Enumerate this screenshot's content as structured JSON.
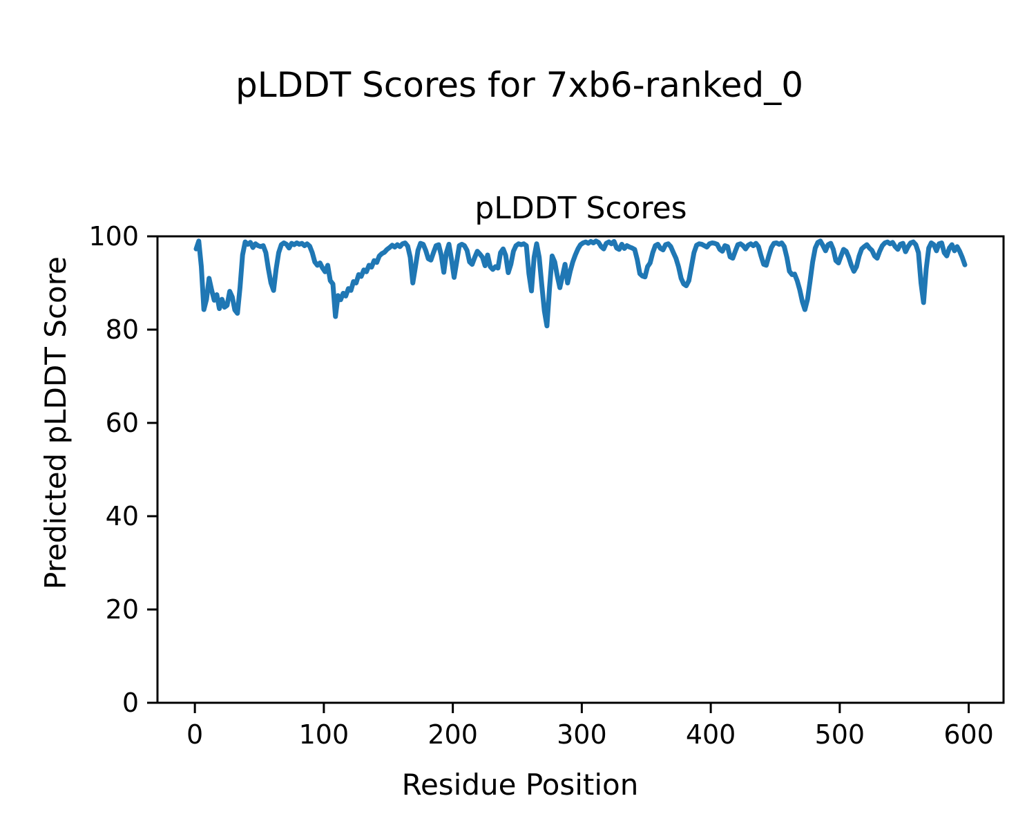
{
  "figure": {
    "background": "#ffffff"
  },
  "chart_data": {
    "type": "line",
    "suptitle": "pLDDT Scores for 7xb6-ranked_0",
    "title": "pLDDT Scores",
    "xlabel": "Residue Position",
    "ylabel": "Predicted pLDDT Score",
    "xlim": [
      -29,
      627
    ],
    "ylim": [
      0,
      100
    ],
    "xticks": [
      0,
      100,
      200,
      300,
      400,
      500,
      600
    ],
    "yticks": [
      0,
      20,
      40,
      60,
      80,
      100
    ],
    "grid": false,
    "legend": null,
    "series": [
      {
        "name": "pLDDT",
        "color": "#1f77b4",
        "line_width": 3,
        "points": [
          [
            1,
            97.3
          ],
          [
            3,
            99.0
          ],
          [
            5,
            93.5
          ],
          [
            7,
            84.3
          ],
          [
            9,
            86.5
          ],
          [
            11,
            91.0
          ],
          [
            13,
            88.5
          ],
          [
            15,
            86.3
          ],
          [
            17,
            87.5
          ],
          [
            19,
            84.5
          ],
          [
            21,
            86.5
          ],
          [
            23,
            84.8
          ],
          [
            25,
            85.2
          ],
          [
            27,
            88.2
          ],
          [
            29,
            87.0
          ],
          [
            31,
            84.2
          ],
          [
            33,
            83.5
          ],
          [
            35,
            89.0
          ],
          [
            37,
            96.0
          ],
          [
            39,
            98.8
          ],
          [
            41,
            98.3
          ],
          [
            43,
            98.7
          ],
          [
            45,
            97.6
          ],
          [
            47,
            98.4
          ],
          [
            49,
            98.0
          ],
          [
            51,
            97.8
          ],
          [
            53,
            98.0
          ],
          [
            55,
            96.5
          ],
          [
            57,
            93.0
          ],
          [
            59,
            90.0
          ],
          [
            61,
            88.4
          ],
          [
            63,
            93.0
          ],
          [
            65,
            96.5
          ],
          [
            67,
            98.2
          ],
          [
            69,
            98.6
          ],
          [
            71,
            98.3
          ],
          [
            73,
            97.5
          ],
          [
            75,
            98.5
          ],
          [
            77,
            98.2
          ],
          [
            79,
            98.6
          ],
          [
            81,
            98.3
          ],
          [
            83,
            98.5
          ],
          [
            85,
            98.0
          ],
          [
            87,
            98.4
          ],
          [
            89,
            97.9
          ],
          [
            91,
            96.5
          ],
          [
            93,
            94.5
          ],
          [
            95,
            93.8
          ],
          [
            97,
            94.3
          ],
          [
            99,
            93.2
          ],
          [
            101,
            92.4
          ],
          [
            103,
            93.8
          ],
          [
            105,
            90.5
          ],
          [
            107,
            89.8
          ],
          [
            109,
            82.8
          ],
          [
            111,
            87.3
          ],
          [
            113,
            86.4
          ],
          [
            115,
            87.8
          ],
          [
            117,
            87.2
          ],
          [
            119,
            88.8
          ],
          [
            121,
            88.4
          ],
          [
            123,
            90.3
          ],
          [
            125,
            90.0
          ],
          [
            127,
            91.8
          ],
          [
            129,
            91.4
          ],
          [
            131,
            92.8
          ],
          [
            133,
            92.4
          ],
          [
            135,
            93.8
          ],
          [
            137,
            93.4
          ],
          [
            139,
            94.8
          ],
          [
            141,
            94.4
          ],
          [
            143,
            95.8
          ],
          [
            145,
            96.3
          ],
          [
            147,
            96.6
          ],
          [
            149,
            97.2
          ],
          [
            151,
            97.6
          ],
          [
            153,
            98.1
          ],
          [
            155,
            97.7
          ],
          [
            157,
            98.2
          ],
          [
            159,
            97.8
          ],
          [
            161,
            98.4
          ],
          [
            163,
            98.6
          ],
          [
            165,
            97.9
          ],
          [
            167,
            95.5
          ],
          [
            169,
            90.0
          ],
          [
            171,
            93.5
          ],
          [
            173,
            97.0
          ],
          [
            175,
            98.5
          ],
          [
            177,
            98.3
          ],
          [
            179,
            97.0
          ],
          [
            181,
            95.2
          ],
          [
            183,
            94.9
          ],
          [
            185,
            96.5
          ],
          [
            187,
            98.0
          ],
          [
            189,
            98.2
          ],
          [
            191,
            96.0
          ],
          [
            193,
            92.3
          ],
          [
            195,
            96.5
          ],
          [
            197,
            98.3
          ],
          [
            199,
            95.0
          ],
          [
            201,
            91.2
          ],
          [
            203,
            94.5
          ],
          [
            205,
            98.0
          ],
          [
            207,
            98.3
          ],
          [
            209,
            98.0
          ],
          [
            211,
            97.0
          ],
          [
            213,
            94.5
          ],
          [
            215,
            94.0
          ],
          [
            217,
            95.5
          ],
          [
            219,
            96.8
          ],
          [
            221,
            96.2
          ],
          [
            223,
            95.5
          ],
          [
            225,
            93.7
          ],
          [
            227,
            96.0
          ],
          [
            229,
            93.5
          ],
          [
            231,
            92.9
          ],
          [
            233,
            93.5
          ],
          [
            235,
            93.2
          ],
          [
            237,
            96.5
          ],
          [
            239,
            97.3
          ],
          [
            241,
            95.9
          ],
          [
            243,
            92.2
          ],
          [
            245,
            94.0
          ],
          [
            247,
            96.8
          ],
          [
            249,
            98.0
          ],
          [
            251,
            98.4
          ],
          [
            253,
            98.2
          ],
          [
            255,
            98.4
          ],
          [
            257,
            98.0
          ],
          [
            259,
            92.0
          ],
          [
            261,
            88.3
          ],
          [
            263,
            95.5
          ],
          [
            265,
            98.4
          ],
          [
            267,
            95.5
          ],
          [
            269,
            89.5
          ],
          [
            271,
            84.0
          ],
          [
            273,
            80.8
          ],
          [
            275,
            89.0
          ],
          [
            277,
            95.8
          ],
          [
            279,
            94.5
          ],
          [
            281,
            91.5
          ],
          [
            283,
            89.0
          ],
          [
            285,
            91.5
          ],
          [
            287,
            94.0
          ],
          [
            289,
            90.0
          ],
          [
            291,
            92.5
          ],
          [
            293,
            94.5
          ],
          [
            295,
            96.0
          ],
          [
            297,
            97.3
          ],
          [
            299,
            98.2
          ],
          [
            301,
            98.6
          ],
          [
            303,
            98.8
          ],
          [
            305,
            98.5
          ],
          [
            307,
            98.9
          ],
          [
            309,
            98.6
          ],
          [
            311,
            99.0
          ],
          [
            313,
            98.7
          ],
          [
            315,
            97.8
          ],
          [
            317,
            97.3
          ],
          [
            319,
            98.5
          ],
          [
            321,
            98.8
          ],
          [
            323,
            98.4
          ],
          [
            325,
            98.9
          ],
          [
            327,
            97.5
          ],
          [
            329,
            97.2
          ],
          [
            331,
            98.3
          ],
          [
            333,
            97.4
          ],
          [
            335,
            98.0
          ],
          [
            337,
            97.7
          ],
          [
            339,
            97.5
          ],
          [
            341,
            97.2
          ],
          [
            343,
            95.0
          ],
          [
            345,
            92.0
          ],
          [
            347,
            91.5
          ],
          [
            349,
            91.3
          ],
          [
            351,
            93.5
          ],
          [
            353,
            94.3
          ],
          [
            355,
            96.5
          ],
          [
            357,
            98.0
          ],
          [
            359,
            98.3
          ],
          [
            361,
            97.4
          ],
          [
            363,
            97.1
          ],
          [
            365,
            98.2
          ],
          [
            367,
            98.4
          ],
          [
            369,
            97.8
          ],
          [
            371,
            96.5
          ],
          [
            373,
            95.3
          ],
          [
            375,
            93.5
          ],
          [
            377,
            91.0
          ],
          [
            379,
            89.8
          ],
          [
            381,
            89.4
          ],
          [
            383,
            90.5
          ],
          [
            385,
            93.5
          ],
          [
            387,
            96.5
          ],
          [
            389,
            98.1
          ],
          [
            391,
            98.4
          ],
          [
            393,
            98.3
          ],
          [
            395,
            98.0
          ],
          [
            397,
            97.7
          ],
          [
            399,
            98.4
          ],
          [
            401,
            98.6
          ],
          [
            403,
            98.5
          ],
          [
            405,
            98.3
          ],
          [
            407,
            97.2
          ],
          [
            409,
            96.8
          ],
          [
            411,
            98.0
          ],
          [
            413,
            97.8
          ],
          [
            415,
            95.6
          ],
          [
            417,
            95.3
          ],
          [
            419,
            96.8
          ],
          [
            421,
            98.2
          ],
          [
            423,
            98.4
          ],
          [
            425,
            98.0
          ],
          [
            427,
            97.3
          ],
          [
            429,
            98.1
          ],
          [
            431,
            98.4
          ],
          [
            433,
            98.0
          ],
          [
            435,
            98.5
          ],
          [
            437,
            97.8
          ],
          [
            439,
            95.8
          ],
          [
            441,
            94.0
          ],
          [
            443,
            93.8
          ],
          [
            445,
            95.8
          ],
          [
            447,
            97.6
          ],
          [
            449,
            98.5
          ],
          [
            451,
            98.6
          ],
          [
            453,
            98.3
          ],
          [
            455,
            98.6
          ],
          [
            457,
            97.8
          ],
          [
            459,
            95.5
          ],
          [
            461,
            92.5
          ],
          [
            463,
            91.8
          ],
          [
            465,
            91.9
          ],
          [
            467,
            90.5
          ],
          [
            469,
            88.5
          ],
          [
            471,
            86.0
          ],
          [
            473,
            84.3
          ],
          [
            475,
            86.5
          ],
          [
            477,
            90.4
          ],
          [
            479,
            94.5
          ],
          [
            481,
            97.5
          ],
          [
            483,
            98.7
          ],
          [
            485,
            99.0
          ],
          [
            487,
            98.0
          ],
          [
            489,
            96.9
          ],
          [
            491,
            98.2
          ],
          [
            493,
            98.5
          ],
          [
            495,
            97.2
          ],
          [
            497,
            94.8
          ],
          [
            499,
            94.3
          ],
          [
            501,
            95.8
          ],
          [
            503,
            97.2
          ],
          [
            505,
            96.8
          ],
          [
            507,
            95.5
          ],
          [
            509,
            93.8
          ],
          [
            511,
            92.5
          ],
          [
            513,
            93.5
          ],
          [
            515,
            95.8
          ],
          [
            517,
            97.3
          ],
          [
            519,
            97.8
          ],
          [
            521,
            98.2
          ],
          [
            523,
            97.5
          ],
          [
            525,
            97.0
          ],
          [
            527,
            95.8
          ],
          [
            529,
            95.3
          ],
          [
            531,
            96.8
          ],
          [
            533,
            98.0
          ],
          [
            535,
            98.6
          ],
          [
            537,
            98.8
          ],
          [
            539,
            98.4
          ],
          [
            541,
            98.7
          ],
          [
            543,
            97.8
          ],
          [
            545,
            97.2
          ],
          [
            547,
            98.3
          ],
          [
            549,
            98.5
          ],
          [
            551,
            96.7
          ],
          [
            553,
            97.8
          ],
          [
            555,
            98.6
          ],
          [
            557,
            98.8
          ],
          [
            559,
            98.2
          ],
          [
            561,
            96.5
          ],
          [
            563,
            90.0
          ],
          [
            565,
            85.8
          ],
          [
            567,
            93.0
          ],
          [
            569,
            97.5
          ],
          [
            571,
            98.6
          ],
          [
            573,
            98.2
          ],
          [
            575,
            96.9
          ],
          [
            577,
            98.4
          ],
          [
            579,
            98.6
          ],
          [
            581,
            96.5
          ],
          [
            583,
            95.8
          ],
          [
            585,
            97.5
          ],
          [
            587,
            98.2
          ],
          [
            589,
            96.9
          ],
          [
            591,
            97.8
          ],
          [
            593,
            96.8
          ],
          [
            595,
            95.5
          ],
          [
            597,
            93.9
          ]
        ]
      }
    ]
  }
}
